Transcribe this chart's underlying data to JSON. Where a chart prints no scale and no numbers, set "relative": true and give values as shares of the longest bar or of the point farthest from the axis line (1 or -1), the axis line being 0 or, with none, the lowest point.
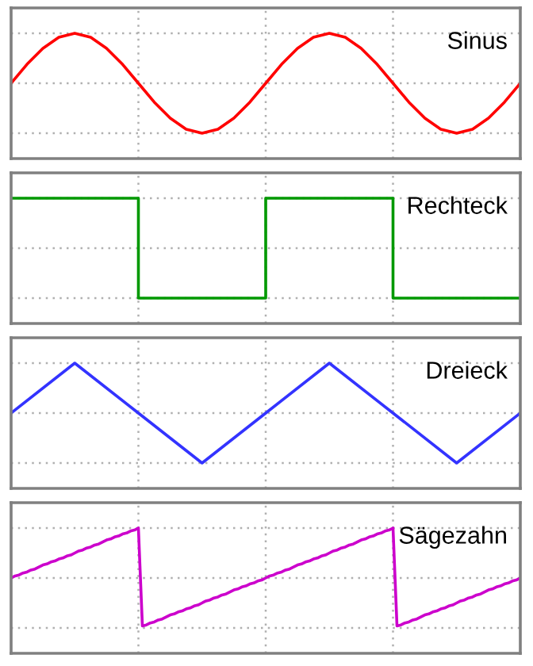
{
  "chart_data": [
    {
      "type": "line",
      "title": "Sinus",
      "relative": true,
      "grid": true,
      "line_style": "solid",
      "categories": [
        null,
        null,
        null,
        null,
        null,
        null,
        null,
        null,
        null,
        null,
        null,
        null,
        null,
        null,
        null,
        null,
        null,
        null,
        null,
        null,
        null,
        null,
        null,
        null,
        null,
        null,
        null,
        null,
        null,
        null,
        null,
        null,
        null
      ],
      "series": [
        {
          "color": "#ff0000",
          "values": [
            0.5,
            0.69,
            0.85,
            0.96,
            1,
            0.96,
            0.85,
            0.69,
            0.5,
            0.31,
            0.15,
            0.04,
            0,
            0.04,
            0.15,
            0.31,
            0.5,
            0.69,
            0.85,
            0.96,
            1,
            0.96,
            0.85,
            0.69,
            0.5,
            0.31,
            0.15,
            0.04,
            0,
            0.04,
            0.15,
            0.31,
            0.5
          ]
        }
      ]
    },
    {
      "type": "step",
      "title": "Rechteck",
      "relative": true,
      "grid": true,
      "line_style": "solid",
      "categories": [
        null,
        null,
        null,
        null,
        null
      ],
      "series": [
        {
          "color": "#009900",
          "values": [
            1,
            0,
            1,
            0,
            0
          ]
        }
      ]
    },
    {
      "type": "line",
      "title": "Dreieck",
      "relative": true,
      "grid": true,
      "line_style": "solid",
      "categories": [
        null,
        null,
        null,
        null,
        null,
        null,
        null,
        null,
        null
      ],
      "series": [
        {
          "color": "#3333ff",
          "values": [
            0.5,
            1,
            0.5,
            0,
            0.5,
            1,
            0.5,
            0,
            0.5
          ]
        }
      ]
    },
    {
      "type": "line",
      "title": "Sägezahn",
      "relative": true,
      "grid": true,
      "line_style": "solid",
      "categories": [
        null,
        null,
        null,
        null,
        null,
        null,
        null,
        null,
        null,
        null,
        null,
        null,
        null,
        null,
        null,
        null,
        null,
        null,
        null,
        null,
        null,
        null,
        null,
        null,
        null,
        null,
        null,
        null,
        null,
        null,
        null,
        null,
        null,
        null,
        null,
        null,
        null,
        null,
        null,
        null,
        null,
        null,
        null,
        null,
        null,
        null,
        null,
        null,
        null,
        null,
        null,
        null,
        null,
        null,
        null,
        null,
        null,
        null,
        null,
        null,
        null,
        null,
        null,
        null,
        null,
        null,
        null,
        null,
        null,
        null,
        null,
        null,
        null,
        null,
        null,
        null,
        null,
        null,
        null,
        null,
        null,
        null,
        null,
        null,
        null,
        null,
        null,
        null,
        null,
        null,
        null,
        null,
        null,
        null,
        null,
        null,
        null,
        null,
        null,
        null,
        null,
        null,
        null,
        null,
        null,
        null,
        null,
        null,
        null,
        null,
        null,
        null,
        null,
        null,
        null,
        null,
        null,
        null,
        null,
        null,
        null,
        null,
        null,
        null,
        null,
        null,
        null,
        null,
        null
      ],
      "series": [
        {
          "color": "#cc00cc",
          "values": [
            0.5,
            0.52,
            0.53,
            0.55,
            0.56,
            0.58,
            0.59,
            0.61,
            0.63,
            0.64,
            0.66,
            0.67,
            0.69,
            0.7,
            0.72,
            0.73,
            0.75,
            0.77,
            0.78,
            0.8,
            0.81,
            0.83,
            0.84,
            0.86,
            0.88,
            0.89,
            0.91,
            0.92,
            0.94,
            0.95,
            0.97,
            0.98,
            1,
            0.02,
            0.03,
            0.05,
            0.06,
            0.08,
            0.09,
            0.11,
            0.13,
            0.14,
            0.16,
            0.17,
            0.19,
            0.2,
            0.22,
            0.23,
            0.25,
            0.27,
            0.28,
            0.3,
            0.31,
            0.33,
            0.34,
            0.36,
            0.38,
            0.39,
            0.41,
            0.42,
            0.44,
            0.45,
            0.47,
            0.48,
            0.5,
            0.52,
            0.53,
            0.55,
            0.56,
            0.58,
            0.59,
            0.61,
            0.63,
            0.64,
            0.66,
            0.67,
            0.69,
            0.7,
            0.72,
            0.73,
            0.75,
            0.77,
            0.78,
            0.8,
            0.81,
            0.83,
            0.84,
            0.86,
            0.88,
            0.89,
            0.91,
            0.92,
            0.94,
            0.95,
            0.97,
            0.98,
            1,
            0.02,
            0.03,
            0.05,
            0.06,
            0.08,
            0.09,
            0.11,
            0.13,
            0.14,
            0.16,
            0.17,
            0.19,
            0.2,
            0.22,
            0.23,
            0.25,
            0.27,
            0.28,
            0.3,
            0.31,
            0.33,
            0.34,
            0.36,
            0.38,
            0.39,
            0.41,
            0.42,
            0.44,
            0.45,
            0.47,
            0.48,
            0.5
          ]
        }
      ]
    }
  ]
}
